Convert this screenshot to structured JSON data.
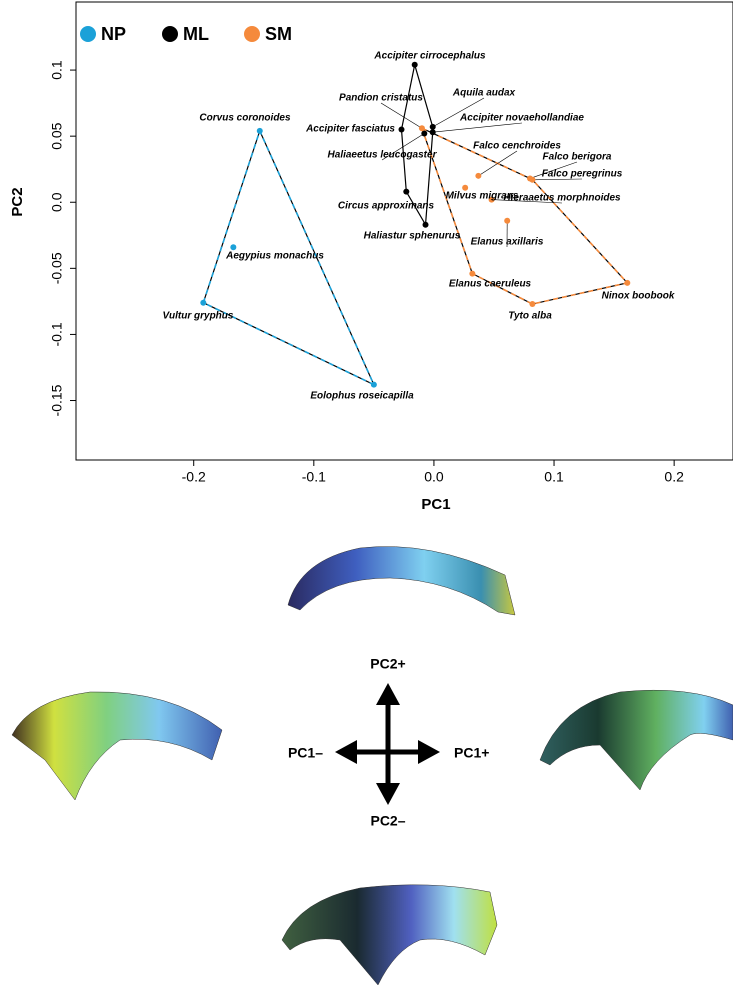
{
  "chart_data": {
    "type": "scatter",
    "xlabel": "PC1",
    "ylabel": "PC2",
    "xlim": [
      -0.298,
      0.249
    ],
    "ylim": [
      -0.195,
      0.1515
    ],
    "xticks": [
      -0.2,
      -0.1,
      {
        "value": 0,
        "label": "0.0"
      },
      0.1,
      0.2
    ],
    "yticks": [
      -0.15,
      -0.1,
      -0.05,
      {
        "value": 0,
        "label": "0.0"
      },
      0.05,
      0.1
    ],
    "series": [
      {
        "name": "NP",
        "color": "#1ba1d8",
        "labels": [
          "Corvus coronoides",
          "Aegypius monachus",
          "Vultur gryphus",
          "Eolophus roseicapilla"
        ],
        "x": [
          -0.145,
          -0.167,
          -0.192,
          -0.05
        ],
        "values": [
          0.054,
          -0.034,
          -0.076,
          -0.138
        ]
      },
      {
        "name": "ML",
        "color": "#000000",
        "labels": [
          "Accipiter cirrocephalus",
          "Accipiter fasciatus",
          "Aquila audax",
          "Accipiter novaehollandiae",
          "Haliaeetus leucogaster",
          "Circus approximans",
          "Haliastur sphenurus"
        ],
        "x": [
          -0.016,
          -0.027,
          -0.001,
          -0.001,
          -0.008,
          -0.023,
          -0.007
        ],
        "values": [
          0.104,
          0.055,
          0.057,
          0.053,
          0.052,
          0.008,
          -0.017
        ]
      },
      {
        "name": "SM",
        "color": "#f58a3c",
        "labels": [
          "Pandion cristatus",
          "Falco cenchroides",
          "Falco berigora",
          "Falco peregrinus",
          "Hieraaetus morphnoides",
          "Milvus migrans",
          "Elanus axillaris",
          "Elanus caeruleus",
          "Tyto alba",
          "Ninox boobook"
        ],
        "x": [
          -0.01,
          0.037,
          0.08,
          0.082,
          0.048,
          0.026,
          0.061,
          0.032,
          0.082,
          0.161
        ],
        "values": [
          0.056,
          0.02,
          0.018,
          0.017,
          0.002,
          0.011,
          -0.014,
          -0.054,
          -0.077,
          -0.061
        ]
      }
    ]
  },
  "shape_panel": {
    "pc2_plus": "PC2+",
    "pc1_minus": "PC1–",
    "pc1_plus": "PC1+",
    "pc2_minus": "PC2–"
  }
}
